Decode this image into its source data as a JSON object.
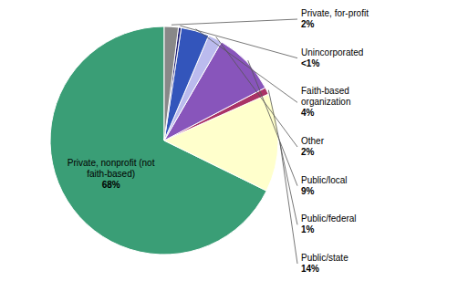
{
  "chart_data": {
    "type": "pie",
    "categories": [
      "Private, nonprofit (not\nfaith-based)",
      "Public/state",
      "Public/federal",
      "Public/local",
      "Other",
      "Faith-based\norganization",
      "Unincorporated",
      "Private, for-profit"
    ],
    "values": [
      68,
      14,
      1,
      9,
      2,
      4,
      0.4,
      2
    ],
    "value_labels": [
      "68%",
      "14%",
      "1%",
      "9%",
      "2%",
      "4%",
      "<1%",
      "2%"
    ],
    "colors": [
      "#3a9e76",
      "#ffffcc",
      "#aa3366",
      "#8855bb",
      "#bbbbee",
      "#3355bb",
      "#222277",
      "#888888"
    ]
  }
}
